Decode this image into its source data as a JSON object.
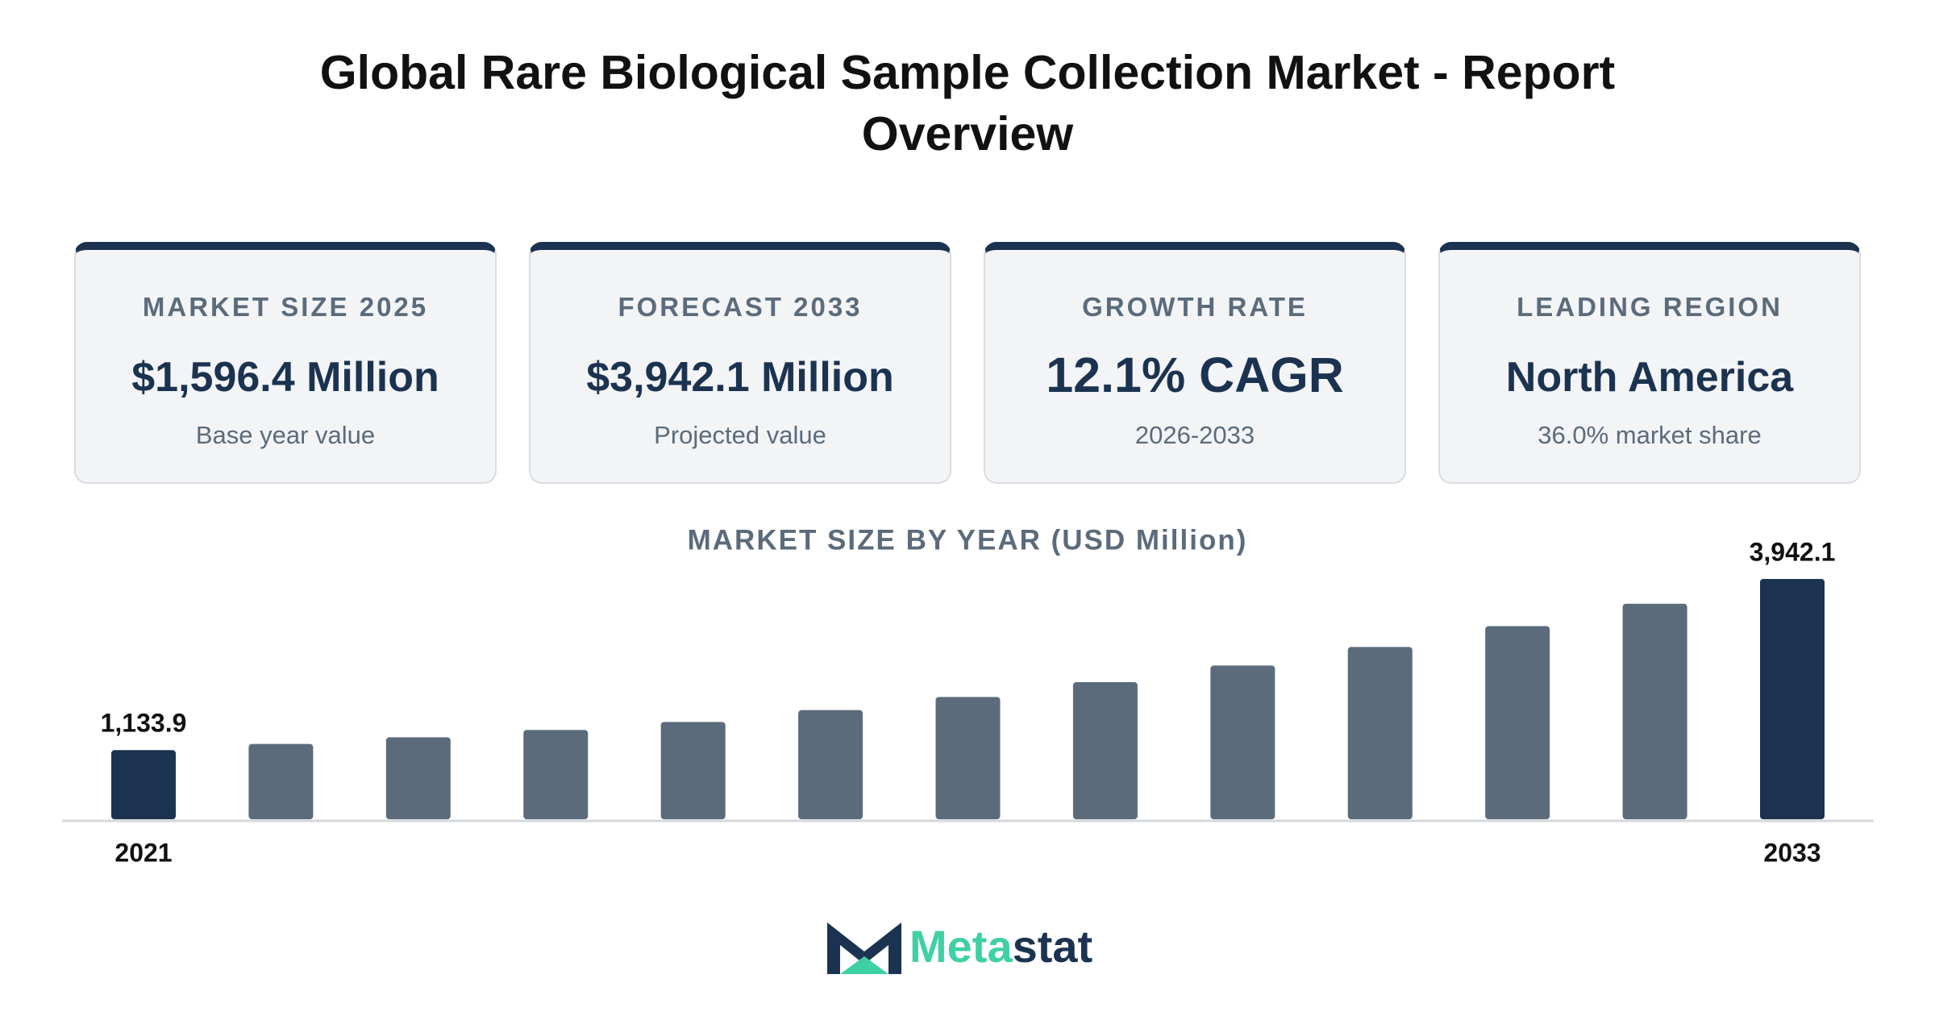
{
  "header": {
    "title": "Global Rare Biological Sample Collection Market - Report Overview"
  },
  "cards": [
    {
      "label": "MARKET SIZE 2025",
      "value": "$1,596.4 Million",
      "note": "Base year value"
    },
    {
      "label": "FORECAST 2033",
      "value": "$3,942.1 Million",
      "note": "Projected value"
    },
    {
      "label": "GROWTH RATE",
      "value": "12.1% CAGR",
      "note": "2026-2033"
    },
    {
      "label": "LEADING REGION",
      "value": "North America",
      "note": "36.0% market share"
    }
  ],
  "chart_data": {
    "type": "bar",
    "title": "MARKET SIZE BY YEAR (USD Million)",
    "categories": [
      "2021",
      null,
      null,
      null,
      null,
      null,
      null,
      null,
      null,
      null,
      null,
      null,
      "2033"
    ],
    "values": [
      1133.9,
      1235,
      1345,
      1465,
      1596.4,
      1790,
      2006,
      2249,
      2521,
      2826,
      3168,
      3536,
      3942.1
    ],
    "value_labels": [
      "1,133.9",
      null,
      null,
      null,
      null,
      null,
      null,
      null,
      null,
      null,
      null,
      null,
      "3,942.1"
    ],
    "colors": [
      "#1b3350",
      "#5b6b7b",
      "#5b6b7b",
      "#5b6b7b",
      "#5b6b7b",
      "#5b6b7b",
      "#5b6b7b",
      "#5b6b7b",
      "#5b6b7b",
      "#5b6b7b",
      "#5b6b7b",
      "#5b6b7b",
      "#1b3350"
    ]
  },
  "logo": {
    "part_1": "Meta",
    "part_2": "stat"
  }
}
